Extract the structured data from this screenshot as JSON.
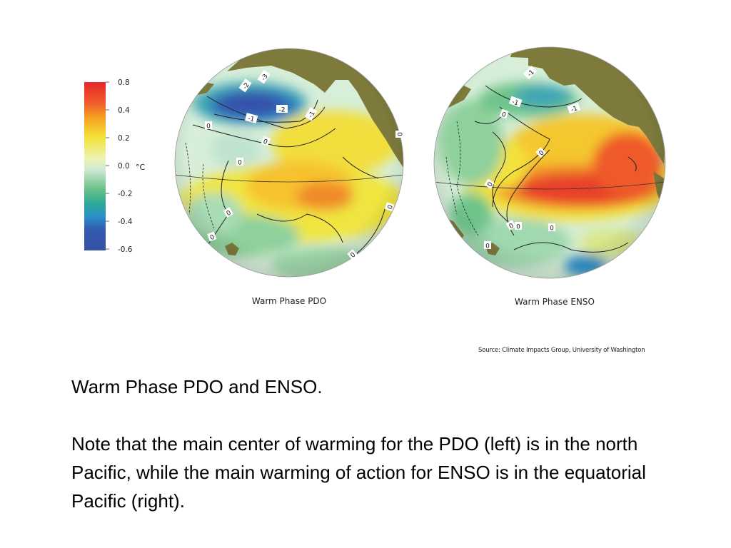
{
  "colorbar": {
    "unit": "°C",
    "ticks": [
      "0.8",
      "0.4",
      "0.2",
      "0.0",
      "-0.2",
      "-0.4",
      "-0.6"
    ],
    "colors": [
      "#e8262a",
      "#f26a2a",
      "#f6a623",
      "#f3e23a",
      "#eef18a",
      "#d7ecd6",
      "#a7dcc4",
      "#5fc07f",
      "#2aa6a8",
      "#2f86c8",
      "#3551a8"
    ]
  },
  "maps": [
    {
      "id": "pdo",
      "caption": "Warm Phase PDO",
      "contour_labels": [
        "-3",
        "-2",
        "-2",
        "-1",
        "-1",
        "0",
        "0",
        "0",
        "0",
        "0",
        "0",
        "0",
        "0"
      ]
    },
    {
      "id": "enso",
      "caption": "Warm Phase ENSO",
      "contour_labels": [
        "-1",
        "-1",
        "-1",
        "0",
        "0",
        "0",
        "0",
        "0",
        "0",
        "0"
      ]
    }
  ],
  "source": "Source: Climate Impacts Group, University of Washington",
  "text": {
    "heading": "Warm Phase PDO and ENSO.",
    "body": "Note that the main center of warming for the PDO (left) is in the north Pacific, while the main warming of action for ENSO is in the equatorial Pacific (right)."
  },
  "colors": {
    "land": "#7d7a3c",
    "ocean_neutral": "#d9eedc",
    "warm": "#e8262a",
    "cool": "#3551a8"
  }
}
